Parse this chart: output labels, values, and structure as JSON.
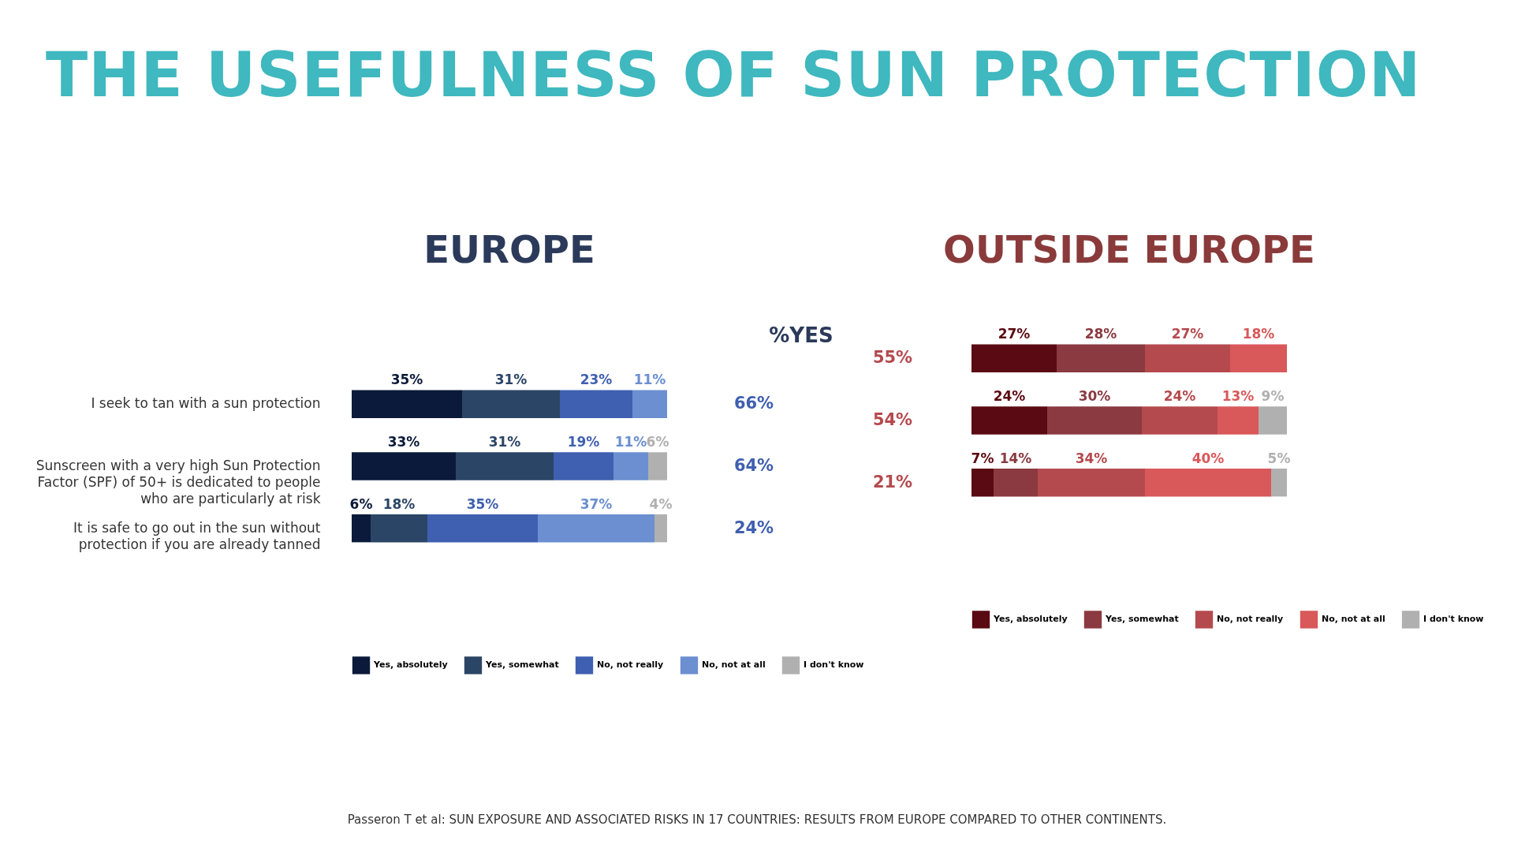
{
  "chart_data": [
    {
      "type": "bar",
      "title": "THE USEFULNESS OF SUN PROTECTION",
      "subtitle": "EUROPE",
      "orientation": "horizontal",
      "stacked": true,
      "legend": "bottom",
      "categories": [
        "I seek to tan with a sun protection",
        "Sunscreen with a very high Sun Protection Factor (SPF) of 50+ is dedicated to people who are particularly at risk",
        "It is safe to go out in the sun without protection if you are already tanned"
      ],
      "series": [
        {
          "name": "Yes, absolutely",
          "color": "#0b1a3a",
          "values": [
            35,
            33,
            6
          ],
          "value_labels": [
            "35%",
            "33%",
            "6%"
          ]
        },
        {
          "name": "Yes, somewhat",
          "color": "#2b4566",
          "values": [
            31,
            31,
            18
          ],
          "value_labels": [
            "31%",
            "31%",
            "18%"
          ]
        },
        {
          "name": "No, not really",
          "color": "#3f5fb0",
          "values": [
            23,
            19,
            35
          ],
          "value_labels": [
            "23%",
            "19%",
            "35%"
          ]
        },
        {
          "name": "No, not at all",
          "color": "#6b8fd0",
          "values": [
            11,
            11,
            37
          ],
          "value_labels": [
            "11%",
            "11%",
            "37%"
          ]
        },
        {
          "name": "I don't know",
          "color": "#b0b0b0",
          "values": [
            null,
            6,
            4
          ],
          "value_labels": [
            null,
            "6%",
            "4%"
          ]
        }
      ],
      "annotations": [
        "%YES",
        "66%",
        "64%",
        "24%"
      ]
    },
    {
      "type": "bar",
      "title": "OUTSIDE EUROPE",
      "orientation": "horizontal",
      "stacked": true,
      "legend": "bottom",
      "categories": [
        null,
        null,
        null
      ],
      "series": [
        {
          "name": "Yes, absolutely",
          "color": "#5a0a12",
          "values": [
            27,
            24,
            7
          ],
          "value_labels": [
            "27%",
            "24%",
            "7%"
          ]
        },
        {
          "name": "Yes, somewhat",
          "color": "#8a3a40",
          "values": [
            28,
            30,
            14
          ],
          "value_labels": [
            "28%",
            "30%",
            "14%"
          ]
        },
        {
          "name": "No, not really",
          "color": "#b54a4e",
          "values": [
            27,
            24,
            34
          ],
          "value_labels": [
            "27%",
            "24%",
            "34%"
          ]
        },
        {
          "name": "No, not at all",
          "color": "#d9585a",
          "values": [
            18,
            13,
            40
          ],
          "value_labels": [
            "18%",
            "13%",
            "40%"
          ]
        },
        {
          "name": "I don't know",
          "color": "#b0b0b0",
          "values": [
            null,
            9,
            5
          ],
          "value_labels": [
            null,
            "9%",
            "5%"
          ]
        }
      ],
      "annotations": [
        "55%",
        "54%",
        "21%",
        "Passeron T et al: SUN EXPOSURE AND ASSOCIATED RISKS IN 17 COUNTRIES: RESULTS FROM EUROPE COMPARED TO OTHER CONTINENTS."
      ]
    }
  ]
}
